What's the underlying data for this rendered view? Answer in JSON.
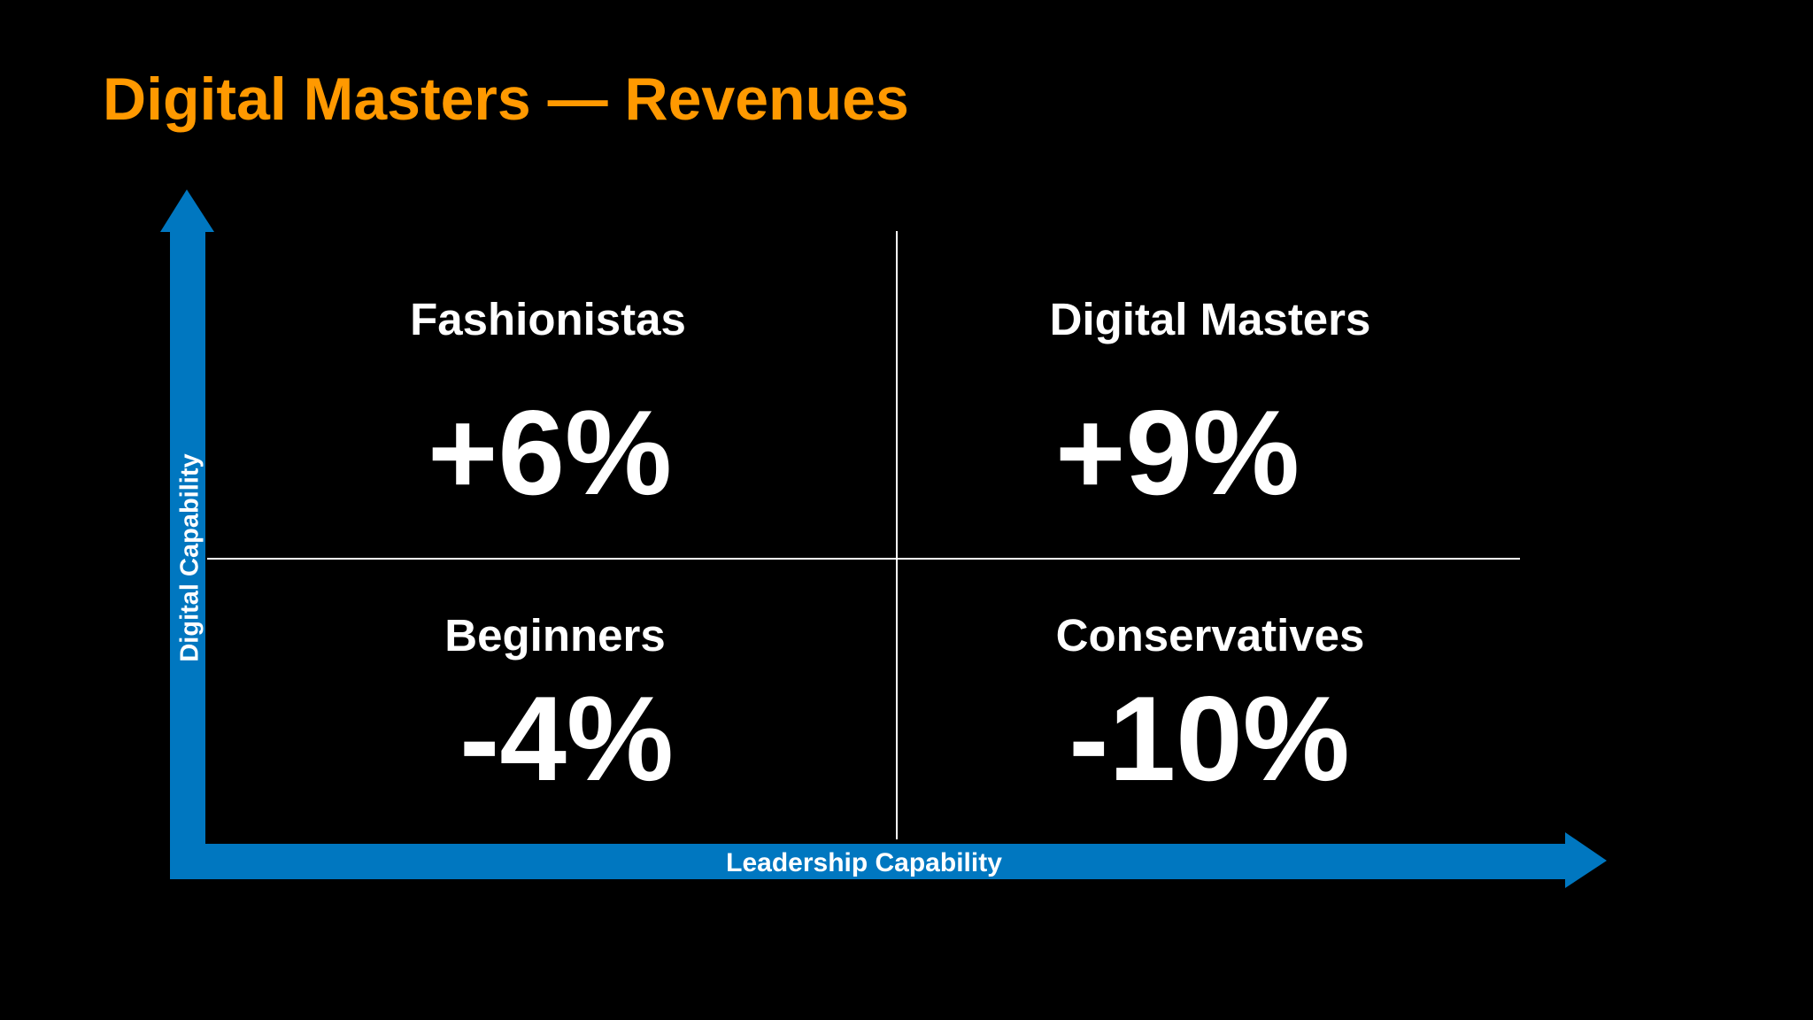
{
  "title": "Digital Masters — Revenues",
  "axes": {
    "x_label": "Leadership Capability",
    "y_label": "Digital Capability"
  },
  "quadrants": [
    {
      "label": "Fashionistas",
      "value": "+6%"
    },
    {
      "label": "Digital Masters",
      "value": "+9%"
    },
    {
      "label": "Beginners",
      "value": "-4%"
    },
    {
      "label": "Conservatives",
      "value": "-10%"
    }
  ],
  "colors": {
    "title": "#FF9900",
    "axis_arrow": "#0077C0",
    "grid_line": "#FFFFFF",
    "text": "#FFFFFF",
    "background": "#000000"
  }
}
